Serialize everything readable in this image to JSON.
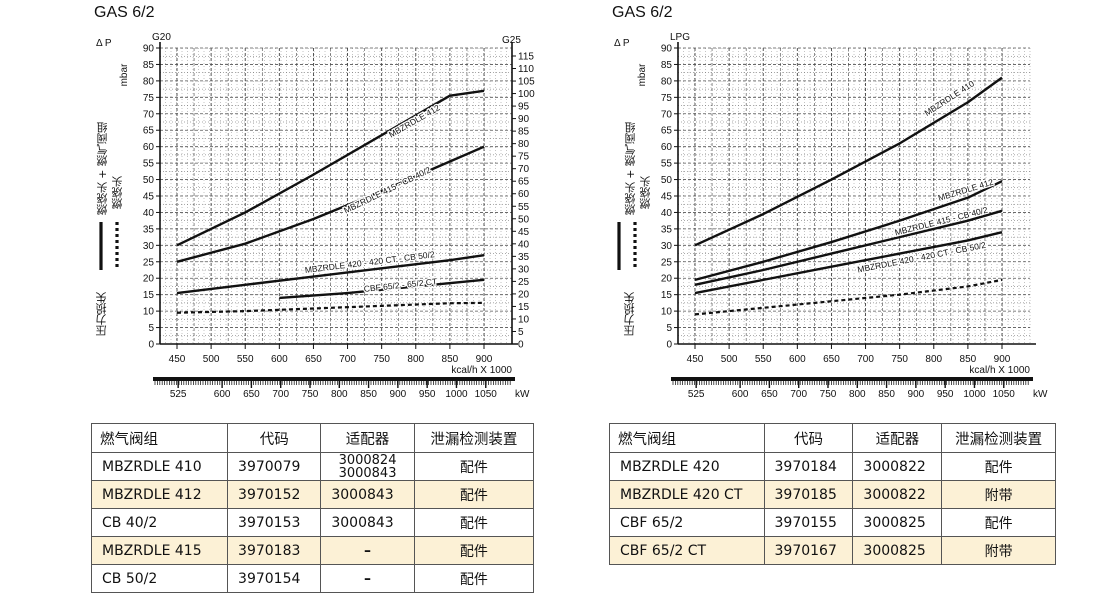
{
  "panels": [
    {
      "title": "GAS 6/2",
      "dp_label": "Δ P",
      "unit_label": "mbar",
      "left_gas": "G20",
      "right_gas": "G25",
      "legend": {
        "solid": "燃烧头 + 燃气阀组",
        "dashed": "燃烧头",
        "axis_title": "压力损失"
      },
      "x_label": "kcal/h X 1000",
      "kw_label": "kW",
      "table": {
        "headers": [
          "燃气阀组",
          "代码",
          "适配器",
          "泄漏检测装置"
        ],
        "rows": [
          {
            "cells": [
              "MBZRDLE 410",
              "3970079",
              "3000824\n3000843",
              "配件"
            ],
            "highlight": false
          },
          {
            "cells": [
              "MBZRDLE 412",
              "3970152",
              "3000843",
              "配件"
            ],
            "highlight": true
          },
          {
            "cells": [
              "CB 40/2",
              "3970153",
              "3000843",
              "配件"
            ],
            "highlight": false
          },
          {
            "cells": [
              "MBZRDLE 415",
              "3970183",
              "–",
              "配件"
            ],
            "highlight": true
          },
          {
            "cells": [
              "CB 50/2",
              "3970154",
              "–",
              "配件"
            ],
            "highlight": false
          }
        ]
      }
    },
    {
      "title": "GAS 6/2",
      "dp_label": "Δ P",
      "unit_label": "mbar",
      "left_gas": "LPG",
      "right_gas": "",
      "legend": {
        "solid": "燃烧头 + 燃气阀组",
        "dashed": "燃烧头",
        "axis_title": "压力损失"
      },
      "x_label": "kcal/h X 1000",
      "kw_label": "kW",
      "table": {
        "headers": [
          "燃气阀组",
          "代码",
          "适配器",
          "泄漏检测装置"
        ],
        "rows": [
          {
            "cells": [
              "MBZRDLE 420",
              "3970184",
              "3000822",
              "配件"
            ],
            "highlight": false
          },
          {
            "cells": [
              "MBZRDLE 420 CT",
              "3970185",
              "3000822",
              "附带"
            ],
            "highlight": true
          },
          {
            "cells": [
              "CBF 65/2",
              "3970155",
              "3000825",
              "配件"
            ],
            "highlight": false
          },
          {
            "cells": [
              "CBF 65/2 CT",
              "3970167",
              "3000825",
              "附带"
            ],
            "highlight": true
          }
        ]
      }
    }
  ],
  "chart_data": [
    {
      "type": "line",
      "title": "GAS 6/2",
      "xlabel": "kcal/h X 1000",
      "ylabel": "Δ P mbar",
      "xlim": [
        450,
        900
      ],
      "ylim": [
        0,
        90
      ],
      "y2lim": [
        0,
        115
      ],
      "x_ticks": [
        450,
        500,
        550,
        600,
        650,
        700,
        750,
        800,
        850,
        900
      ],
      "y_ticks": [
        0,
        5,
        10,
        15,
        20,
        25,
        30,
        35,
        40,
        45,
        50,
        55,
        60,
        65,
        70,
        75,
        80,
        85,
        90
      ],
      "y2_ticks": [
        0,
        5,
        10,
        15,
        20,
        25,
        30,
        35,
        40,
        45,
        50,
        55,
        60,
        65,
        70,
        75,
        80,
        85,
        90,
        95,
        100,
        105,
        110,
        115
      ],
      "kw_ticks": [
        525,
        600,
        650,
        700,
        750,
        800,
        850,
        900,
        950,
        1000,
        1050
      ],
      "kw_range": [
        523,
        1047
      ],
      "grid": true,
      "series": [
        {
          "name": "MBZRDLE 412",
          "style": "solid",
          "label_at": [
            800,
            67
          ],
          "angle": -30,
          "points": [
            [
              450,
              30
            ],
            [
              550,
              40
            ],
            [
              650,
              51.5
            ],
            [
              750,
              63.5
            ],
            [
              850,
              75.5
            ],
            [
              900,
              77
            ]
          ]
        },
        {
          "name": "MBZRDLE 415 - CB 40/2",
          "style": "solid",
          "label_at": [
            760,
            46
          ],
          "angle": -26,
          "points": [
            [
              450,
              25
            ],
            [
              550,
              30.5
            ],
            [
              650,
              38
            ],
            [
              750,
              46.5
            ],
            [
              850,
              55.5
            ],
            [
              900,
              60
            ]
          ]
        },
        {
          "name": "MBZRDLE 420 - 420 CT - CB 50/2",
          "style": "solid",
          "label_at": [
            733,
            24
          ],
          "angle": -7,
          "points": [
            [
              450,
              15.5
            ],
            [
              550,
              18
            ],
            [
              650,
              20.5
            ],
            [
              750,
              23
            ],
            [
              850,
              25.5
            ],
            [
              900,
              27
            ]
          ]
        },
        {
          "name": "CBF 65/2 - 65/2 CT",
          "style": "solid",
          "label_at": [
            778,
            17
          ],
          "angle": -6,
          "points": [
            [
              600,
              14
            ],
            [
              700,
              15.5
            ],
            [
              800,
              17.5
            ],
            [
              900,
              19.5
            ]
          ]
        },
        {
          "name": "",
          "style": "dashed",
          "points": [
            [
              450,
              9.5
            ],
            [
              550,
              10
            ],
            [
              650,
              10.8
            ],
            [
              750,
              11.6
            ],
            [
              850,
              12.4
            ],
            [
              900,
              12.5
            ]
          ]
        }
      ]
    },
    {
      "type": "line",
      "title": "GAS 6/2",
      "xlabel": "kcal/h X 1000",
      "ylabel": "Δ P mbar",
      "xlim": [
        450,
        900
      ],
      "ylim": [
        0,
        90
      ],
      "x_ticks": [
        450,
        500,
        550,
        600,
        650,
        700,
        750,
        800,
        850,
        900
      ],
      "y_ticks": [
        0,
        5,
        10,
        15,
        20,
        25,
        30,
        35,
        40,
        45,
        50,
        55,
        60,
        65,
        70,
        75,
        80,
        85,
        90
      ],
      "kw_ticks": [
        525,
        600,
        650,
        700,
        750,
        800,
        850,
        900,
        950,
        1000,
        1050
      ],
      "kw_range": [
        523,
        1047
      ],
      "grid": true,
      "series": [
        {
          "name": "MBZRDLE 410",
          "style": "solid",
          "label_at": [
            825,
            74
          ],
          "angle": -33,
          "points": [
            [
              450,
              30
            ],
            [
              550,
              39.5
            ],
            [
              650,
              50
            ],
            [
              750,
              61
            ],
            [
              850,
              73.5
            ],
            [
              900,
              81
            ]
          ]
        },
        {
          "name": "MBZRDLE 412",
          "style": "solid",
          "label_at": [
            848,
            46
          ],
          "angle": -17,
          "points": [
            [
              450,
              19.5
            ],
            [
              550,
              25
            ],
            [
              650,
              31
            ],
            [
              750,
              37.5
            ],
            [
              850,
              44.5
            ],
            [
              900,
              49.5
            ]
          ]
        },
        {
          "name": "MBZRDLE 415 - CB 40/2",
          "style": "solid",
          "label_at": [
            812,
            36.5
          ],
          "angle": -14,
          "points": [
            [
              450,
              18
            ],
            [
              550,
              22.5
            ],
            [
              650,
              27.5
            ],
            [
              750,
              32.5
            ],
            [
              850,
              37.5
            ],
            [
              900,
              40.5
            ]
          ]
        },
        {
          "name": "MBZRDLE 420 - 420 CT - CB 50/2",
          "style": "solid",
          "label_at": [
            783,
            25.5
          ],
          "angle": -11,
          "points": [
            [
              450,
              15.5
            ],
            [
              550,
              19.5
            ],
            [
              650,
              23.5
            ],
            [
              750,
              27.5
            ],
            [
              850,
              31.5
            ],
            [
              900,
              34
            ]
          ]
        },
        {
          "name": "",
          "style": "dashed",
          "points": [
            [
              450,
              9
            ],
            [
              550,
              11
            ],
            [
              650,
              13
            ],
            [
              750,
              15
            ],
            [
              850,
              17.5
            ],
            [
              900,
              19.5
            ]
          ]
        }
      ]
    }
  ]
}
